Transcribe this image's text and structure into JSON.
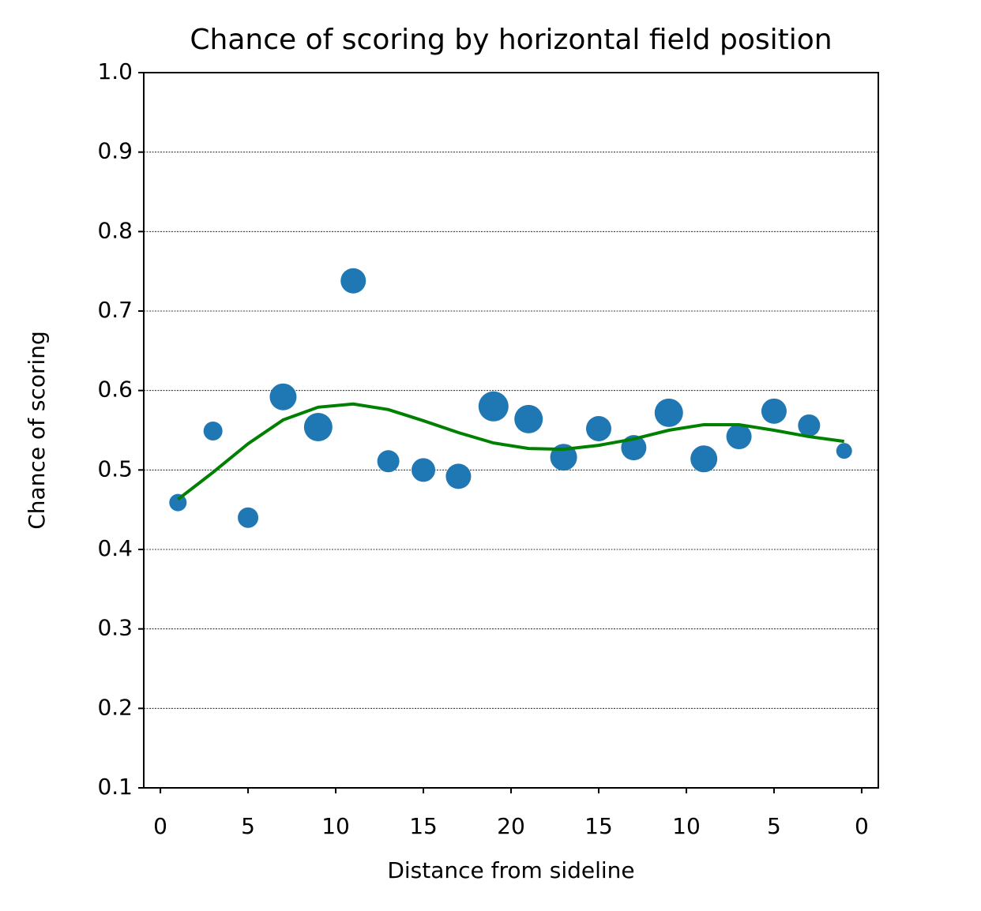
{
  "chart_data": {
    "type": "scatter",
    "title": "Chance of scoring by horizontal field position",
    "xlabel": "Distance from sideline",
    "ylabel": "Chance of scoring",
    "x": [
      1,
      3,
      5,
      7,
      9,
      11,
      13,
      15,
      17,
      19,
      21,
      23,
      25,
      27,
      29,
      31,
      33,
      35,
      37,
      39
    ],
    "series": [
      {
        "type": "scatter",
        "color": "#1f77b4",
        "values": [
          0.459,
          0.549,
          0.44,
          0.592,
          0.554,
          0.738,
          0.511,
          0.5,
          0.492,
          0.58,
          0.564,
          0.516,
          0.552,
          0.528,
          0.572,
          0.514,
          0.542,
          0.574,
          0.556,
          0.524
        ],
        "sizes": [
          121,
          144,
          169,
          289,
          324,
          256,
          196,
          225,
          256,
          361,
          324,
          289,
          256,
          256,
          324,
          289,
          256,
          256,
          196,
          100
        ]
      },
      {
        "type": "line",
        "color": "#008000",
        "values": [
          0.463,
          0.497,
          0.533,
          0.563,
          0.579,
          0.583,
          0.576,
          0.562,
          0.547,
          0.534,
          0.527,
          0.526,
          0.531,
          0.539,
          0.55,
          0.557,
          0.557,
          0.55,
          0.542,
          0.536
        ]
      }
    ],
    "xlim": [
      -0.95,
      40.95
    ],
    "xticks": [
      0,
      5,
      10,
      15,
      20,
      {
        "value": 25,
        "label": "15"
      },
      {
        "value": 30,
        "label": "10"
      },
      {
        "value": 35,
        "label": "5"
      },
      {
        "value": 40,
        "label": "0"
      }
    ],
    "ylim": [
      0.1,
      1.0
    ],
    "yticks": [
      0.1,
      0.2,
      0.3,
      0.4,
      0.5,
      0.6,
      0.7,
      0.8,
      0.9,
      {
        "value": 1.0,
        "label": "1.0"
      }
    ],
    "grid": true
  }
}
